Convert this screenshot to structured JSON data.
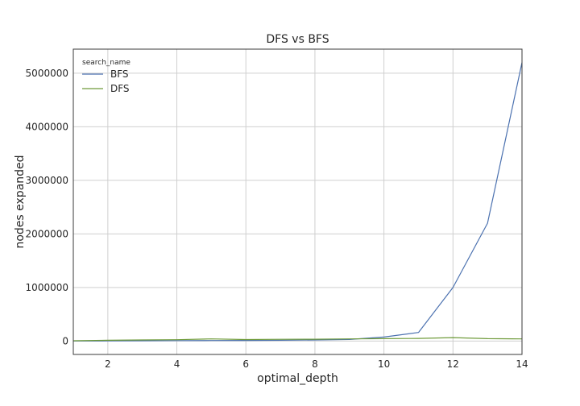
{
  "chart_data": {
    "type": "line",
    "title": "DFS vs BFS",
    "xlabel": "optimal_depth",
    "ylabel": "nodes expanded",
    "xlim": [
      1,
      14
    ],
    "ylim": [
      -250000,
      5450000
    ],
    "xticks": [
      2,
      4,
      6,
      8,
      10,
      12,
      14
    ],
    "yticks": [
      0,
      1000000,
      2000000,
      3000000,
      4000000,
      5000000
    ],
    "ytick_labels": [
      "0",
      "1000000",
      "2000000",
      "3000000",
      "4000000",
      "5000000"
    ],
    "grid": true,
    "legend_title": "search_name",
    "legend_position": "top-left",
    "x": [
      1,
      2,
      3,
      4,
      5,
      6,
      7,
      8,
      9,
      10,
      11,
      12,
      13,
      14
    ],
    "series": [
      {
        "name": "BFS",
        "color": "#4c72b0",
        "values": [
          1000,
          3000,
          5000,
          8000,
          10000,
          12000,
          15000,
          20000,
          30000,
          75000,
          160000,
          1000000,
          2200000,
          5200000
        ]
      },
      {
        "name": "DFS",
        "color": "#6f9b3b",
        "values": [
          5000,
          15000,
          20000,
          25000,
          40000,
          28000,
          32000,
          35000,
          40000,
          45000,
          50000,
          65000,
          45000,
          40000
        ]
      }
    ]
  }
}
